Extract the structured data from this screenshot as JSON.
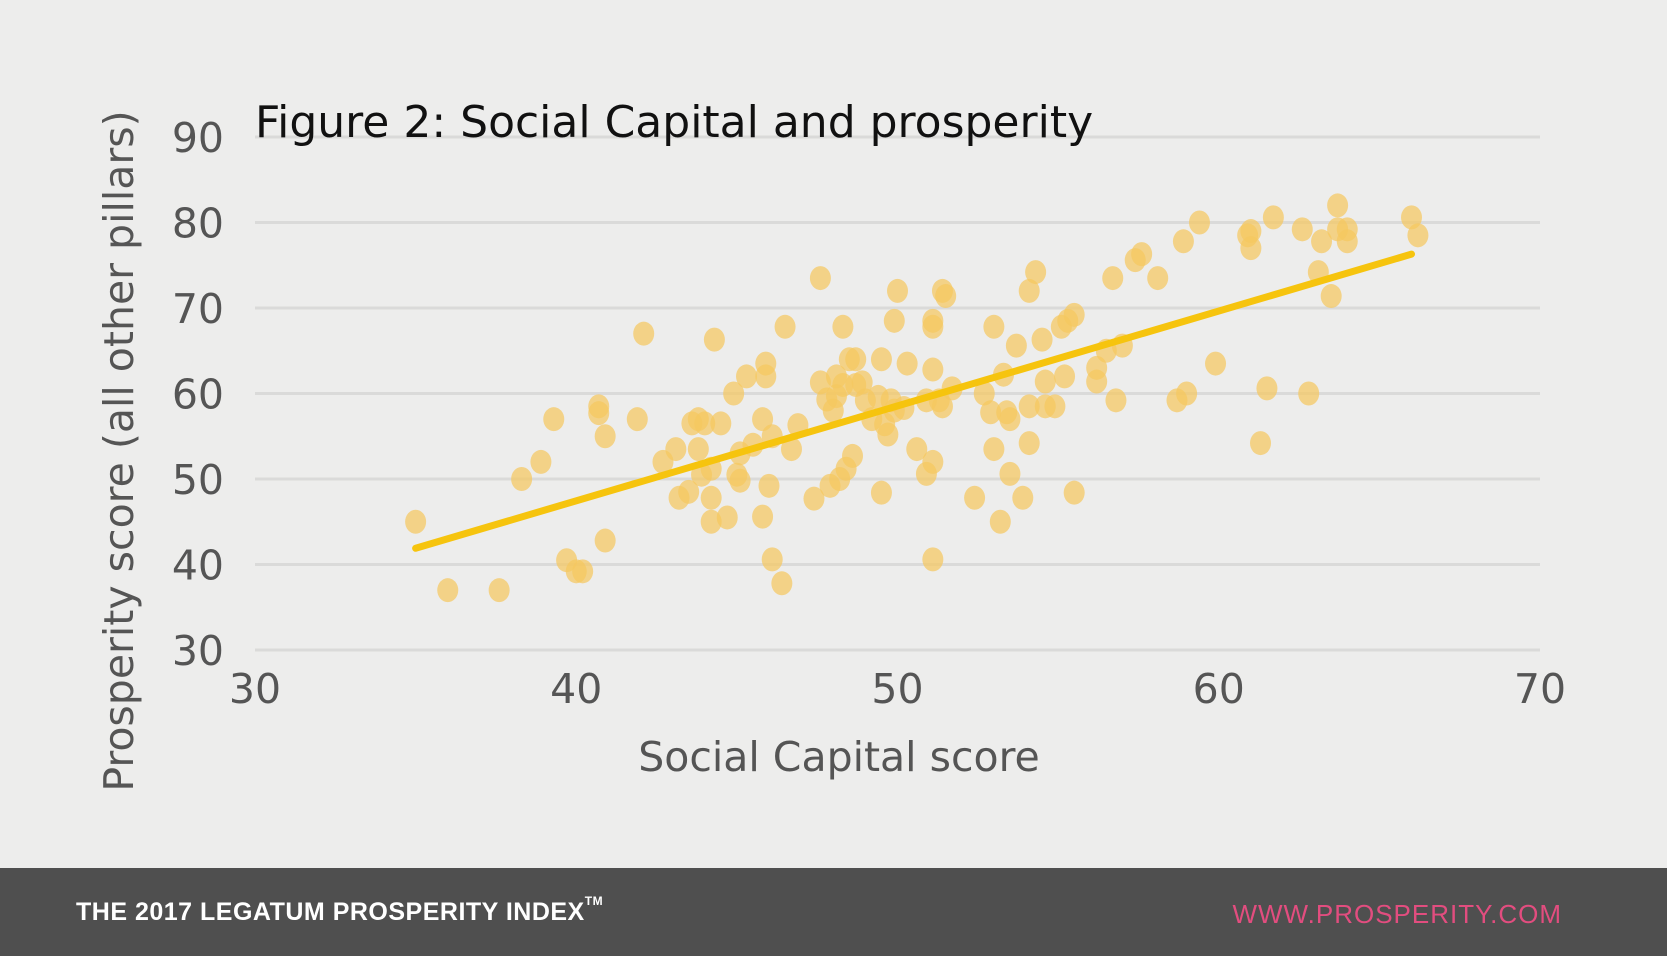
{
  "footer": {
    "brand": "THE 2017 LEGATUM PROSPERITY INDEX",
    "trademark": "TM",
    "url": "WWW.PROSPERITY.COM",
    "url_color": "#e24d7f",
    "background": "#4f4f4f"
  },
  "chart_data": {
    "type": "scatter",
    "title": "Figure 2: Social Capital and prosperity",
    "xlabel": "Social Capital score",
    "ylabel": "Prosperity score (all other pillars)",
    "xlim": [
      30,
      70
    ],
    "ylim": [
      30,
      90
    ],
    "xticks": [
      "30",
      "40",
      "50",
      "60",
      "70"
    ],
    "yticks": [
      "30",
      "40",
      "50",
      "60",
      "70",
      "80",
      "90"
    ],
    "grid": "horizontal",
    "point_color": "#f5c760",
    "trend_color": "#f6c40e",
    "trendline": [
      [
        35,
        41.9
      ],
      [
        66,
        76.3
      ]
    ],
    "points": [
      [
        35.0,
        45
      ],
      [
        36.0,
        37
      ],
      [
        37.6,
        37
      ],
      [
        38.3,
        50
      ],
      [
        38.9,
        52
      ],
      [
        39.3,
        57
      ],
      [
        39.7,
        40.5
      ],
      [
        40.0,
        39.2
      ],
      [
        40.2,
        39.2
      ],
      [
        40.7,
        58.5
      ],
      [
        40.7,
        57.7
      ],
      [
        40.9,
        55
      ],
      [
        40.9,
        42.8
      ],
      [
        41.9,
        57
      ],
      [
        42.1,
        67
      ],
      [
        42.7,
        52
      ],
      [
        43.1,
        53.5
      ],
      [
        43.2,
        47.8
      ],
      [
        43.5,
        48.5
      ],
      [
        43.6,
        56.5
      ],
      [
        43.8,
        57
      ],
      [
        43.8,
        53.5
      ],
      [
        43.9,
        50.5
      ],
      [
        44.0,
        56.5
      ],
      [
        44.2,
        51.2
      ],
      [
        44.2,
        47.8
      ],
      [
        44.2,
        45
      ],
      [
        44.3,
        66.3
      ],
      [
        44.5,
        56.5
      ],
      [
        44.7,
        45.5
      ],
      [
        44.9,
        60
      ],
      [
        45.0,
        50.5
      ],
      [
        45.1,
        49.8
      ],
      [
        45.1,
        53
      ],
      [
        45.3,
        62
      ],
      [
        45.5,
        54
      ],
      [
        45.8,
        57
      ],
      [
        45.8,
        45.6
      ],
      [
        45.9,
        63.5
      ],
      [
        45.9,
        62
      ],
      [
        46.0,
        49.2
      ],
      [
        46.1,
        55
      ],
      [
        46.1,
        40.6
      ],
      [
        46.4,
        37.8
      ],
      [
        46.5,
        67.8
      ],
      [
        46.7,
        53.5
      ],
      [
        46.9,
        56.3
      ],
      [
        47.4,
        47.7
      ],
      [
        47.6,
        73.5
      ],
      [
        47.6,
        61.3
      ],
      [
        47.8,
        59.3
      ],
      [
        47.9,
        49.2
      ],
      [
        48.0,
        58
      ],
      [
        48.1,
        59.7
      ],
      [
        48.1,
        62
      ],
      [
        48.2,
        50
      ],
      [
        48.3,
        67.8
      ],
      [
        48.3,
        61
      ],
      [
        48.4,
        51.2
      ],
      [
        48.5,
        64
      ],
      [
        48.6,
        52.7
      ],
      [
        48.7,
        64
      ],
      [
        48.7,
        61
      ],
      [
        48.9,
        61.3
      ],
      [
        49.0,
        59.2
      ],
      [
        49.2,
        57
      ],
      [
        49.4,
        59.6
      ],
      [
        49.5,
        48.4
      ],
      [
        49.5,
        64
      ],
      [
        49.6,
        56.4
      ],
      [
        49.7,
        55.2
      ],
      [
        49.8,
        59.2
      ],
      [
        49.9,
        58
      ],
      [
        49.9,
        68.5
      ],
      [
        50.0,
        72
      ],
      [
        50.2,
        58.3
      ],
      [
        50.3,
        63.5
      ],
      [
        50.6,
        53.5
      ],
      [
        50.9,
        59.2
      ],
      [
        50.9,
        50.6
      ],
      [
        51.1,
        68.5
      ],
      [
        51.1,
        67.8
      ],
      [
        51.1,
        62.8
      ],
      [
        51.1,
        52
      ],
      [
        51.1,
        40.6
      ],
      [
        51.3,
        59.2
      ],
      [
        51.4,
        58.5
      ],
      [
        51.4,
        72
      ],
      [
        51.5,
        71.4
      ],
      [
        51.7,
        60.6
      ],
      [
        52.4,
        47.8
      ],
      [
        52.7,
        60
      ],
      [
        52.9,
        57.8
      ],
      [
        53.0,
        67.8
      ],
      [
        53.0,
        53.5
      ],
      [
        53.2,
        45
      ],
      [
        53.3,
        62.2
      ],
      [
        53.4,
        57.8
      ],
      [
        53.5,
        57
      ],
      [
        53.5,
        50.6
      ],
      [
        53.7,
        65.6
      ],
      [
        53.9,
        47.8
      ],
      [
        54.1,
        58.5
      ],
      [
        54.1,
        72
      ],
      [
        54.1,
        54.2
      ],
      [
        54.3,
        74.2
      ],
      [
        54.5,
        66.3
      ],
      [
        54.6,
        61.4
      ],
      [
        54.6,
        58.5
      ],
      [
        54.9,
        58.5
      ],
      [
        55.1,
        67.8
      ],
      [
        55.2,
        62
      ],
      [
        55.3,
        68.5
      ],
      [
        55.5,
        69.2
      ],
      [
        55.5,
        48.4
      ],
      [
        56.2,
        61.4
      ],
      [
        56.2,
        63
      ],
      [
        56.5,
        65
      ],
      [
        56.7,
        73.5
      ],
      [
        56.8,
        59.2
      ],
      [
        57.0,
        65.6
      ],
      [
        57.4,
        75.6
      ],
      [
        57.6,
        76.3
      ],
      [
        58.1,
        73.5
      ],
      [
        58.7,
        59.2
      ],
      [
        58.9,
        77.8
      ],
      [
        59.0,
        60
      ],
      [
        59.4,
        80
      ],
      [
        59.9,
        63.5
      ],
      [
        60.9,
        78.5
      ],
      [
        61.0,
        79
      ],
      [
        61.0,
        77
      ],
      [
        61.3,
        54.2
      ],
      [
        61.5,
        60.6
      ],
      [
        61.7,
        80.6
      ],
      [
        62.6,
        79.2
      ],
      [
        62.8,
        60
      ],
      [
        63.1,
        74.2
      ],
      [
        63.2,
        77.8
      ],
      [
        63.5,
        71.4
      ],
      [
        63.7,
        82
      ],
      [
        63.7,
        79.2
      ],
      [
        64.0,
        79.2
      ],
      [
        64.0,
        77.8
      ],
      [
        66.0,
        80.6
      ],
      [
        66.2,
        78.5
      ]
    ]
  }
}
